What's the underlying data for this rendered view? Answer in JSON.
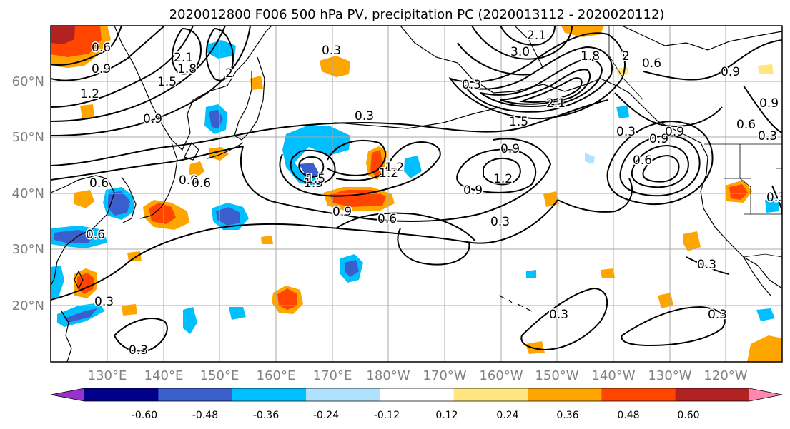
{
  "title": "2020012800 F006 500 hPa PV, precipitation PC (2020013112 - 2020020112)",
  "lat_labels": [
    "60°N",
    "50°N",
    "40°N",
    "30°N",
    "20°N"
  ],
  "lon_labels": [
    "130°E",
    "140°E",
    "150°E",
    "160°E",
    "170°E",
    "180°W",
    "170°W",
    "160°W",
    "150°W",
    "140°W",
    "130°W",
    "120°W"
  ],
  "colorbar": {
    "tick_labels": [
      "-0.60",
      "-0.48",
      "-0.36",
      "-0.24",
      "-0.12",
      "0.12",
      "0.24",
      "0.36",
      "0.48",
      "0.60"
    ],
    "colors": [
      "#9932cc",
      "#00008b",
      "#3a5fcd",
      "#00bfff",
      "#b0e2ff",
      "#ffffff",
      "#ffe680",
      "#ffa500",
      "#ff4500",
      "#b22222",
      "#ff88b0"
    ]
  },
  "contour_labels": [
    "0.6",
    "0.9",
    "1.2",
    "1.5",
    "1.8",
    "2.1",
    "0.3",
    "0.9",
    "2",
    "0.3",
    "3.0",
    "2.1",
    "1.8",
    "2",
    "0.6",
    "0.9",
    "0.9",
    "0.3",
    "1.5",
    "2.1",
    "0.3",
    "0.9",
    "0.6",
    "0.6",
    "1.2",
    "0.3",
    "0.9",
    "0.6",
    "0.9",
    "1.2",
    "1.5",
    "0.6",
    "0.9",
    "0.6",
    "0.3",
    "0.3",
    "0.3",
    "0.3",
    "0.3",
    "0.3",
    "0.3",
    "0.6",
    "0.9",
    "0.9",
    "1.2",
    "1.5"
  ]
}
